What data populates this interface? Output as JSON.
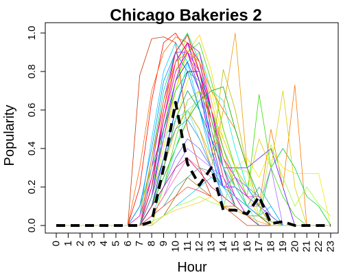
{
  "chart_data": {
    "type": "line",
    "title": "Chicago Bakeries 2",
    "xlabel": "Hour",
    "ylabel": "Popularity",
    "xlim": [
      0,
      23
    ],
    "ylim": [
      0,
      1
    ],
    "x_ticks": [
      "0",
      "1",
      "2",
      "3",
      "4",
      "5",
      "6",
      "7",
      "8",
      "9",
      "10",
      "11",
      "12",
      "13",
      "14",
      "15",
      "16",
      "17",
      "18",
      "19",
      "20",
      "21",
      "22",
      "23"
    ],
    "y_ticks": [
      "0.0",
      "0.2",
      "0.4",
      "0.6",
      "0.8",
      "1.0"
    ],
    "grid": false,
    "legend": "none",
    "series": [
      {
        "color": "#FF0000",
        "values": [
          0,
          0,
          0,
          0,
          0,
          0,
          0,
          0.2,
          0.65,
          0.95,
          1.0,
          0.9,
          0.75,
          0.55,
          0.3,
          0.1,
          0.05,
          0,
          0,
          0,
          0,
          0,
          0,
          0
        ]
      },
      {
        "color": "#FF6600",
        "values": [
          0,
          0,
          0,
          0,
          0,
          0,
          0,
          0.3,
          0.7,
          0.9,
          0.98,
          0.95,
          0.8,
          0.5,
          0.3,
          0.15,
          0.05,
          0,
          0,
          0,
          0,
          0,
          0,
          0
        ]
      },
      {
        "color": "#FFAA00",
        "values": [
          0,
          0,
          0,
          0,
          0,
          0,
          0,
          0.05,
          0.35,
          0.6,
          0.85,
          0.95,
          0.9,
          0.65,
          0.4,
          0.2,
          0.1,
          0.05,
          0,
          0,
          0,
          0,
          0,
          0
        ]
      },
      {
        "color": "#FFD000",
        "values": [
          0,
          0,
          0,
          0,
          0,
          0,
          0,
          0,
          0.2,
          0.45,
          0.7,
          0.9,
          0.99,
          0.8,
          0.5,
          0.3,
          0.15,
          0.05,
          0,
          0,
          0,
          0,
          0,
          0
        ]
      },
      {
        "color": "#EEEE00",
        "values": [
          0,
          0,
          0,
          0,
          0,
          0,
          0,
          0,
          0.1,
          0.3,
          0.55,
          0.75,
          0.9,
          0.7,
          0.45,
          0.3,
          0.35,
          0.25,
          0.4,
          0.3,
          0.27,
          0.27,
          0.27,
          0
        ]
      },
      {
        "color": "#CCFF00",
        "values": [
          0,
          0,
          0,
          0,
          0,
          0,
          0,
          0,
          0.15,
          0.4,
          0.7,
          0.95,
          0.85,
          0.6,
          0.35,
          0.2,
          0.1,
          0.05,
          0,
          0,
          0,
          0,
          0,
          0
        ]
      },
      {
        "color": "#88FF00",
        "values": [
          0,
          0,
          0,
          0,
          0,
          0,
          0,
          0,
          0.25,
          0.5,
          0.8,
          1.0,
          0.8,
          0.5,
          0.3,
          0.15,
          0.05,
          0,
          0,
          0,
          0,
          0,
          0,
          0
        ]
      },
      {
        "color": "#33DD00",
        "values": [
          0,
          0,
          0,
          0,
          0,
          0,
          0,
          0,
          0.2,
          0.45,
          0.75,
          0.9,
          0.95,
          0.75,
          0.5,
          0.3,
          0.15,
          0.68,
          0.3,
          0.15,
          0.05,
          0,
          0,
          0
        ]
      },
      {
        "color": "#00CC33",
        "values": [
          0,
          0,
          0,
          0,
          0,
          0,
          0,
          0.1,
          0.3,
          0.5,
          0.7,
          0.8,
          0.75,
          0.6,
          0.4,
          0.25,
          0.1,
          0.05,
          0.3,
          0.4,
          0.3,
          0.15,
          0.1,
          0
        ]
      },
      {
        "color": "#00DD88",
        "values": [
          0,
          0,
          0,
          0,
          0,
          0,
          0,
          0,
          0.35,
          0.7,
          0.9,
          1.0,
          0.85,
          0.55,
          0.3,
          0.1,
          0.05,
          0,
          0,
          0,
          0,
          0,
          0,
          0
        ]
      },
      {
        "color": "#00EEDD",
        "values": [
          0,
          0,
          0,
          0,
          0,
          0,
          0,
          0,
          0.15,
          0.35,
          0.6,
          0.85,
          0.9,
          0.7,
          0.65,
          0.4,
          0.2,
          0.1,
          0,
          0,
          0,
          0,
          0,
          0
        ]
      },
      {
        "color": "#00CCFF",
        "values": [
          0,
          0,
          0,
          0,
          0,
          0,
          0,
          0.05,
          0.45,
          0.8,
          0.95,
          0.85,
          0.6,
          0.35,
          0.2,
          0.1,
          0.05,
          0,
          0,
          0,
          0,
          0,
          0,
          0
        ]
      },
      {
        "color": "#0088FF",
        "values": [
          0,
          0,
          0,
          0,
          0,
          0,
          0,
          0.1,
          0.4,
          0.75,
          0.9,
          0.8,
          0.6,
          0.4,
          0.1,
          0.3,
          0.2,
          0.1,
          0,
          0,
          0,
          0,
          0,
          0
        ]
      },
      {
        "color": "#0044FF",
        "values": [
          0,
          0,
          0,
          0,
          0,
          0,
          0,
          0,
          0.15,
          0.5,
          0.75,
          0.85,
          0.7,
          0.45,
          0.2,
          0.2,
          0.1,
          0.05,
          0,
          0,
          0,
          0,
          0,
          0
        ]
      },
      {
        "color": "#0000DD",
        "values": [
          0,
          0,
          0,
          0,
          0,
          0,
          0,
          0,
          0.1,
          0.35,
          0.6,
          0.8,
          0.8,
          0.6,
          0.3,
          0.2,
          0.1,
          0.05,
          0,
          0,
          0,
          0,
          0,
          0
        ]
      },
      {
        "color": "#5500FF",
        "values": [
          0,
          0,
          0,
          0,
          0,
          0,
          0,
          0,
          0.2,
          0.55,
          0.85,
          0.95,
          0.75,
          0.45,
          0.3,
          0.3,
          0.3,
          0.35,
          0.4,
          0.2,
          0,
          0,
          0,
          0
        ]
      },
      {
        "color": "#9900FF",
        "values": [
          0,
          0,
          0,
          0,
          0,
          0,
          0,
          0,
          0.3,
          0.65,
          0.9,
          0.9,
          0.7,
          0.4,
          0.2,
          0.2,
          0.15,
          0.1,
          0.05,
          0,
          0,
          0,
          0,
          0
        ]
      },
      {
        "color": "#DD00FF",
        "values": [
          0,
          0,
          0,
          0,
          0,
          0,
          0,
          0,
          0.15,
          0.45,
          0.75,
          0.95,
          0.9,
          0.6,
          0.3,
          0.15,
          0.05,
          0,
          0,
          0,
          0,
          0,
          0,
          0
        ]
      },
      {
        "color": "#FF00CC",
        "values": [
          0,
          0,
          0,
          0,
          0,
          0,
          0,
          0.05,
          0.25,
          0.55,
          0.8,
          0.9,
          0.8,
          0.55,
          0.35,
          0.25,
          0.15,
          0.15,
          0.05,
          0,
          0,
          0,
          0,
          0
        ]
      },
      {
        "color": "#FF0088",
        "values": [
          0,
          0,
          0,
          0,
          0,
          0,
          0,
          0,
          0.25,
          0.55,
          0.85,
          0.95,
          0.85,
          0.6,
          0.35,
          0.2,
          0.1,
          0.05,
          0,
          0,
          0,
          0,
          0,
          0
        ]
      },
      {
        "color": "#FF0044",
        "values": [
          0,
          0,
          0,
          0,
          0,
          0,
          0,
          0,
          0.2,
          0.6,
          0.9,
          0.99,
          0.8,
          0.5,
          0.25,
          0.1,
          0.05,
          0,
          0,
          0,
          0,
          0,
          0,
          0
        ]
      },
      {
        "color": "#CC3300",
        "values": [
          0,
          0,
          0,
          0,
          0,
          0,
          0,
          0.78,
          0.97,
          0.98,
          0.95,
          0.5,
          0.3,
          0.15,
          0.1,
          0.05,
          0,
          0,
          0,
          0,
          0,
          0,
          0,
          0
        ]
      },
      {
        "color": "#FF7700",
        "values": [
          0,
          0,
          0,
          0,
          0,
          0,
          0,
          0,
          0.35,
          0.65,
          0.85,
          0.9,
          0.85,
          0.7,
          0.6,
          0.5,
          0.3,
          0.1,
          0.5,
          0.2,
          0.73,
          0,
          0,
          0
        ]
      },
      {
        "color": "#EE9900",
        "values": [
          0,
          0,
          0,
          0,
          0,
          0,
          0,
          0,
          0.1,
          0.3,
          0.5,
          0.6,
          0.5,
          0.3,
          0.6,
          1.0,
          0.3,
          0.1,
          0,
          0,
          0,
          0,
          0,
          0
        ]
      },
      {
        "color": "#BBBB00",
        "values": [
          0,
          0,
          0,
          0,
          0,
          0,
          0,
          0,
          0.15,
          0.35,
          0.5,
          0.6,
          0.5,
          0.35,
          0.81,
          0.6,
          0.3,
          0.1,
          0,
          0,
          0,
          0,
          0,
          0
        ]
      },
      {
        "color": "#DDCC00",
        "values": [
          0,
          0,
          0,
          0,
          0,
          0,
          0,
          0,
          0,
          0.2,
          0.4,
          0.55,
          0.7,
          0.6,
          0.45,
          0.3,
          0.2,
          0.45,
          0.3,
          0.7,
          0.2,
          0,
          0,
          0
        ]
      },
      {
        "color": "#66CC00",
        "values": [
          0,
          0,
          0,
          0,
          0,
          0,
          0,
          0,
          0.05,
          0.2,
          0.45,
          0.65,
          0.7,
          0.55,
          0.35,
          0.2,
          0.1,
          0.05,
          0.02,
          0,
          0,
          0,
          0,
          0
        ]
      },
      {
        "color": "#00AA00",
        "values": [
          0,
          0,
          0,
          0,
          0,
          0,
          0,
          0,
          0.1,
          0.25,
          0.4,
          0.55,
          0.65,
          0.7,
          0.72,
          0.5,
          0.3,
          0.15,
          0.05,
          0,
          0,
          0,
          0,
          0
        ]
      },
      {
        "color": "#009966",
        "values": [
          0,
          0,
          0,
          0,
          0,
          0,
          0,
          0,
          0.1,
          0.3,
          0.55,
          0.7,
          0.6,
          0.45,
          0.3,
          0.2,
          0.1,
          0.05,
          0,
          0,
          0,
          0,
          0,
          0
        ]
      },
      {
        "color": "#33FFCC",
        "values": [
          0,
          0,
          0,
          0,
          0,
          0,
          0,
          0,
          0.05,
          0.2,
          0.4,
          0.6,
          0.65,
          0.5,
          0.3,
          0.2,
          0.1,
          0,
          0,
          0,
          0,
          0,
          0,
          0
        ]
      },
      {
        "color": "#66DDFF",
        "values": [
          0,
          0,
          0,
          0,
          0,
          0,
          0,
          0,
          0.3,
          0.45,
          0.55,
          0.6,
          0.45,
          0.3,
          0.2,
          0.1,
          0.05,
          0,
          0,
          0,
          0,
          0,
          0,
          0
        ]
      },
      {
        "color": "#3399CC",
        "values": [
          0,
          0,
          0,
          0,
          0,
          0,
          0,
          0,
          0.15,
          0.35,
          0.5,
          0.55,
          0.45,
          0.3,
          0.15,
          0.1,
          0.05,
          0,
          0,
          0,
          0,
          0,
          0,
          0
        ]
      },
      {
        "color": "#6666FF",
        "values": [
          0,
          0,
          0,
          0,
          0,
          0,
          0,
          0,
          0.1,
          0.2,
          0.35,
          0.45,
          0.4,
          0.3,
          0.2,
          0.25,
          0.2,
          0.15,
          0.05,
          0,
          0,
          0,
          0,
          0
        ]
      },
      {
        "color": "#AA66FF",
        "values": [
          0,
          0,
          0,
          0,
          0,
          0,
          0,
          0,
          0.05,
          0.15,
          0.3,
          0.4,
          0.35,
          0.3,
          0.25,
          0.15,
          0.1,
          0.1,
          0.3,
          0,
          0,
          0,
          0,
          0
        ]
      },
      {
        "color": "#FF66AA",
        "values": [
          0,
          0,
          0,
          0,
          0,
          0,
          0,
          0,
          0.05,
          0.15,
          0.25,
          0.35,
          0.3,
          0.25,
          0.2,
          0.15,
          0.1,
          0.05,
          0,
          0,
          0,
          0,
          0,
          0
        ]
      },
      {
        "color": "#CC0066",
        "values": [
          0,
          0,
          0,
          0,
          0,
          0,
          0,
          0,
          0.1,
          0.2,
          0.3,
          0.35,
          0.28,
          0.2,
          0.15,
          0.1,
          0.05,
          0,
          0,
          0,
          0,
          0,
          0,
          0
        ]
      },
      {
        "color": "#996600",
        "values": [
          0,
          0,
          0,
          0,
          0,
          0,
          0,
          0,
          0,
          0.05,
          0.15,
          0.25,
          0.2,
          0.15,
          0.1,
          0.1,
          0.05,
          0.05,
          0,
          0,
          0,
          0,
          0,
          0
        ]
      },
      {
        "color": "#33AA99",
        "values": [
          0,
          0,
          0,
          0,
          0,
          0,
          0,
          0,
          0.05,
          0.1,
          0.2,
          0.25,
          0.3,
          0.28,
          0.2,
          0.15,
          0.1,
          0.2,
          0.1,
          0,
          0,
          0,
          0,
          0
        ]
      },
      {
        "color": "#FF3333",
        "values": [
          0,
          0,
          0,
          0,
          0,
          0,
          0,
          0,
          0.05,
          0.1,
          0.15,
          0.2,
          0.18,
          0.15,
          0.1,
          0.08,
          0.05,
          0.02,
          0,
          0,
          0,
          0,
          0,
          0
        ]
      },
      {
        "color": "#00BBFF",
        "values": [
          0,
          0,
          0,
          0,
          0,
          0,
          0,
          0,
          0,
          0.05,
          0.1,
          0.15,
          0.2,
          0.25,
          0.2,
          0.15,
          0.1,
          0.05,
          0.1,
          0,
          0,
          0,
          0,
          0
        ]
      },
      {
        "color": "#FFCC33",
        "values": [
          0,
          0,
          0,
          0,
          0,
          0,
          0,
          0,
          0,
          0.05,
          0.08,
          0.1,
          0.12,
          0.15,
          0.1,
          0.08,
          0.05,
          0.02,
          0,
          0,
          0,
          0,
          0,
          0
        ]
      },
      {
        "color": "#99FF33",
        "values": [
          0,
          0,
          0,
          0,
          0,
          0,
          0,
          0,
          0.02,
          0.05,
          0.1,
          0.12,
          0.15,
          0.12,
          0.1,
          0.3,
          0.28,
          0.05,
          0.42,
          0.25,
          0.1,
          0.2,
          0.11,
          0.05
        ]
      }
    ],
    "mean_series": {
      "color": "#000000",
      "values": [
        0,
        0,
        0,
        0,
        0,
        0,
        0,
        0,
        0.02,
        0.3,
        0.64,
        0.32,
        0.21,
        0.3,
        0.08,
        0.08,
        0.06,
        0.15,
        0.01,
        0.02,
        0,
        0,
        0,
        0
      ]
    }
  }
}
